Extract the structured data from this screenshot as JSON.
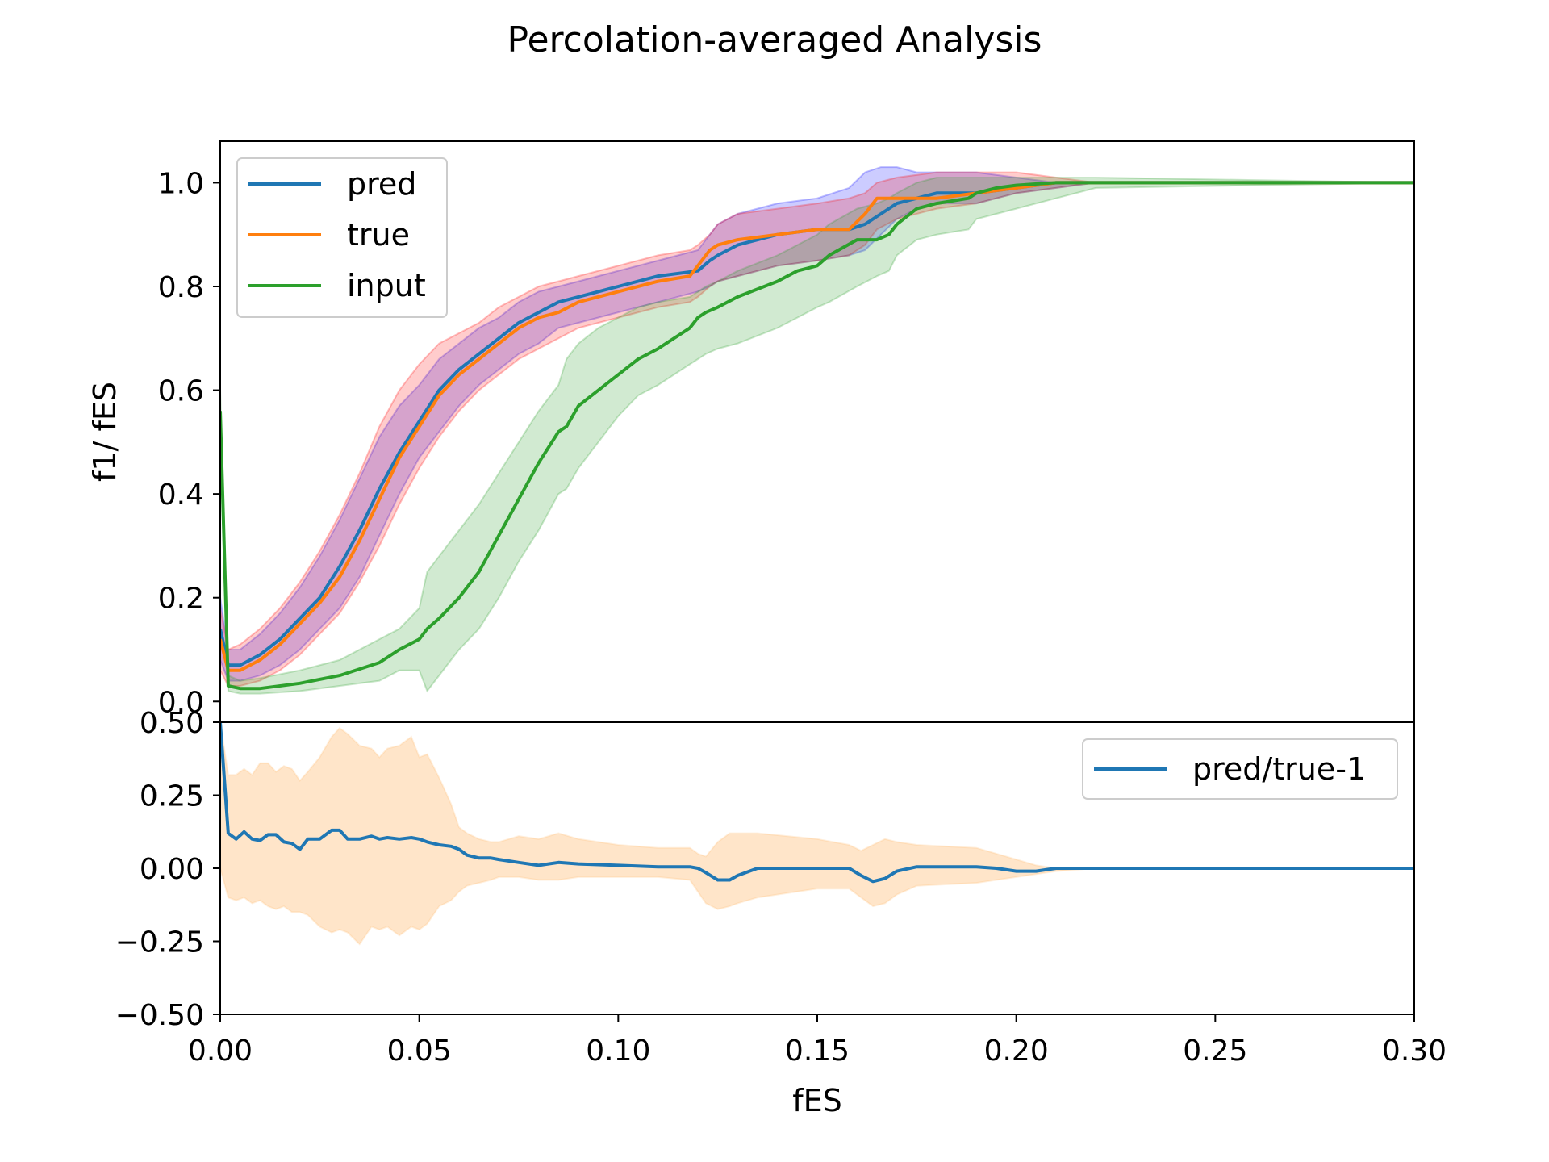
{
  "figure_title": "Percolation-averaged Analysis",
  "chart_data": [
    {
      "type": "line",
      "panel": "top",
      "xlabel": "",
      "ylabel": "f1/ fES",
      "xlim": [
        0,
        0.3
      ],
      "ylim": [
        -0.04,
        1.08
      ],
      "yticks": [
        0.0,
        0.2,
        0.4,
        0.6,
        0.8,
        1.0
      ],
      "ytick_labels": [
        "0.0",
        "0.2",
        "0.4",
        "0.6",
        "0.8",
        "1.0"
      ],
      "legend": {
        "placement": "upper-left",
        "entries": [
          "pred",
          "true",
          "input"
        ]
      },
      "series": [
        {
          "name": "pred",
          "color": "#1f77b4",
          "band_color": "#0000ff",
          "band_alpha": 0.2,
          "x": [
            0.0,
            0.002,
            0.005,
            0.01,
            0.015,
            0.02,
            0.025,
            0.03,
            0.035,
            0.04,
            0.045,
            0.05,
            0.055,
            0.06,
            0.065,
            0.07,
            0.075,
            0.08,
            0.085,
            0.09,
            0.1,
            0.11,
            0.12,
            0.123,
            0.125,
            0.13,
            0.14,
            0.15,
            0.158,
            0.162,
            0.166,
            0.17,
            0.175,
            0.18,
            0.19,
            0.2,
            0.21,
            0.22,
            0.3
          ],
          "y": [
            0.14,
            0.07,
            0.07,
            0.09,
            0.12,
            0.16,
            0.2,
            0.26,
            0.33,
            0.41,
            0.48,
            0.54,
            0.6,
            0.64,
            0.67,
            0.7,
            0.73,
            0.75,
            0.77,
            0.78,
            0.8,
            0.82,
            0.83,
            0.85,
            0.86,
            0.88,
            0.9,
            0.91,
            0.91,
            0.92,
            0.94,
            0.96,
            0.97,
            0.98,
            0.98,
            0.99,
            1.0,
            1.0,
            1.0
          ],
          "lower": [
            0.08,
            0.04,
            0.04,
            0.05,
            0.07,
            0.1,
            0.14,
            0.18,
            0.24,
            0.32,
            0.4,
            0.47,
            0.52,
            0.57,
            0.61,
            0.64,
            0.67,
            0.69,
            0.72,
            0.73,
            0.75,
            0.77,
            0.79,
            0.8,
            0.81,
            0.82,
            0.84,
            0.85,
            0.86,
            0.87,
            0.9,
            0.93,
            0.95,
            0.96,
            0.96,
            0.98,
            0.99,
            1.0,
            1.0
          ],
          "upper": [
            0.2,
            0.1,
            0.1,
            0.13,
            0.17,
            0.22,
            0.28,
            0.35,
            0.43,
            0.51,
            0.57,
            0.61,
            0.66,
            0.69,
            0.72,
            0.74,
            0.77,
            0.79,
            0.8,
            0.81,
            0.83,
            0.85,
            0.87,
            0.9,
            0.92,
            0.94,
            0.96,
            0.97,
            0.99,
            1.02,
            1.03,
            1.03,
            1.02,
            1.02,
            1.02,
            1.01,
            1.0,
            1.0,
            1.0
          ]
        },
        {
          "name": "true",
          "color": "#ff7f0e",
          "band_color": "#ff0000",
          "band_alpha": 0.2,
          "x": [
            0.0,
            0.002,
            0.005,
            0.01,
            0.015,
            0.02,
            0.025,
            0.03,
            0.035,
            0.04,
            0.045,
            0.05,
            0.055,
            0.06,
            0.065,
            0.07,
            0.075,
            0.08,
            0.085,
            0.09,
            0.1,
            0.11,
            0.118,
            0.12,
            0.123,
            0.125,
            0.13,
            0.14,
            0.15,
            0.158,
            0.162,
            0.165,
            0.17,
            0.18,
            0.19,
            0.2,
            0.21,
            0.22,
            0.3
          ],
          "y": [
            0.12,
            0.06,
            0.06,
            0.08,
            0.11,
            0.15,
            0.19,
            0.24,
            0.31,
            0.39,
            0.47,
            0.53,
            0.59,
            0.63,
            0.66,
            0.69,
            0.72,
            0.74,
            0.75,
            0.77,
            0.79,
            0.81,
            0.82,
            0.84,
            0.87,
            0.88,
            0.89,
            0.9,
            0.91,
            0.91,
            0.94,
            0.97,
            0.97,
            0.97,
            0.98,
            0.99,
            1.0,
            1.0,
            1.0
          ],
          "lower": [
            0.06,
            0.03,
            0.03,
            0.04,
            0.06,
            0.09,
            0.13,
            0.17,
            0.23,
            0.3,
            0.38,
            0.45,
            0.51,
            0.56,
            0.6,
            0.63,
            0.66,
            0.68,
            0.7,
            0.72,
            0.74,
            0.76,
            0.77,
            0.78,
            0.8,
            0.81,
            0.82,
            0.84,
            0.85,
            0.86,
            0.88,
            0.91,
            0.93,
            0.95,
            0.96,
            0.98,
            0.99,
            1.0,
            1.0
          ],
          "upper": [
            0.18,
            0.1,
            0.11,
            0.14,
            0.18,
            0.23,
            0.29,
            0.36,
            0.44,
            0.53,
            0.6,
            0.65,
            0.69,
            0.71,
            0.73,
            0.76,
            0.78,
            0.8,
            0.81,
            0.82,
            0.84,
            0.86,
            0.87,
            0.88,
            0.9,
            0.92,
            0.94,
            0.95,
            0.96,
            0.97,
            0.98,
            1.0,
            1.01,
            1.02,
            1.02,
            1.02,
            1.01,
            1.0,
            1.0
          ]
        },
        {
          "name": "input",
          "color": "#2ca02c",
          "band_color": "#2ca02c",
          "band_alpha": 0.22,
          "x": [
            0.0,
            0.002,
            0.005,
            0.01,
            0.02,
            0.03,
            0.04,
            0.045,
            0.05,
            0.052,
            0.055,
            0.06,
            0.065,
            0.07,
            0.075,
            0.08,
            0.085,
            0.087,
            0.09,
            0.095,
            0.1,
            0.105,
            0.11,
            0.118,
            0.12,
            0.122,
            0.125,
            0.13,
            0.14,
            0.145,
            0.15,
            0.153,
            0.16,
            0.165,
            0.168,
            0.17,
            0.175,
            0.18,
            0.188,
            0.19,
            0.195,
            0.2,
            0.21,
            0.22,
            0.3
          ],
          "y": [
            0.56,
            0.03,
            0.025,
            0.025,
            0.035,
            0.05,
            0.075,
            0.1,
            0.12,
            0.14,
            0.16,
            0.2,
            0.25,
            0.32,
            0.39,
            0.46,
            0.52,
            0.53,
            0.57,
            0.6,
            0.63,
            0.66,
            0.68,
            0.72,
            0.74,
            0.75,
            0.76,
            0.78,
            0.81,
            0.83,
            0.84,
            0.86,
            0.89,
            0.89,
            0.9,
            0.92,
            0.95,
            0.96,
            0.97,
            0.98,
            0.99,
            0.995,
            1.0,
            1.0,
            1.0
          ],
          "lower": [
            0.5,
            0.02,
            0.015,
            0.015,
            0.02,
            0.03,
            0.04,
            0.06,
            0.06,
            0.02,
            0.05,
            0.1,
            0.14,
            0.2,
            0.27,
            0.33,
            0.4,
            0.41,
            0.45,
            0.5,
            0.55,
            0.59,
            0.61,
            0.65,
            0.66,
            0.67,
            0.68,
            0.69,
            0.72,
            0.74,
            0.76,
            0.77,
            0.8,
            0.82,
            0.83,
            0.86,
            0.89,
            0.9,
            0.91,
            0.93,
            0.94,
            0.95,
            0.97,
            0.99,
            1.0
          ],
          "upper": [
            0.6,
            0.05,
            0.04,
            0.045,
            0.06,
            0.08,
            0.12,
            0.14,
            0.18,
            0.25,
            0.28,
            0.33,
            0.38,
            0.44,
            0.5,
            0.56,
            0.61,
            0.66,
            0.69,
            0.72,
            0.74,
            0.76,
            0.77,
            0.78,
            0.79,
            0.8,
            0.81,
            0.83,
            0.86,
            0.88,
            0.9,
            0.92,
            0.95,
            0.96,
            0.97,
            0.98,
            1.0,
            1.01,
            1.01,
            1.01,
            1.01,
            1.01,
            1.01,
            1.01,
            1.0
          ]
        }
      ]
    },
    {
      "type": "line",
      "panel": "bottom",
      "xlabel": "fES",
      "ylabel": "",
      "xlim": [
        0,
        0.3
      ],
      "ylim": [
        -0.5,
        0.5
      ],
      "xticks": [
        0.0,
        0.05,
        0.1,
        0.15,
        0.2,
        0.25,
        0.3
      ],
      "xtick_labels": [
        "0.00",
        "0.05",
        "0.10",
        "0.15",
        "0.20",
        "0.25",
        "0.30"
      ],
      "yticks": [
        0.5,
        0.25,
        0.0,
        -0.25,
        -0.5
      ],
      "ytick_labels": [
        "0.50",
        "0.25",
        "0.00",
        "−0.25",
        "−0.50"
      ],
      "legend": {
        "placement": "upper-right",
        "entries": [
          "pred/true-1"
        ]
      },
      "series": [
        {
          "name": "pred/true-1",
          "color": "#1f77b4",
          "band_color": "#ffbe78",
          "band_alpha": 0.4,
          "x": [
            0.0,
            0.002,
            0.004,
            0.006,
            0.008,
            0.01,
            0.012,
            0.014,
            0.016,
            0.018,
            0.02,
            0.022,
            0.025,
            0.028,
            0.03,
            0.032,
            0.035,
            0.038,
            0.04,
            0.042,
            0.045,
            0.048,
            0.05,
            0.052,
            0.055,
            0.058,
            0.06,
            0.062,
            0.065,
            0.068,
            0.07,
            0.075,
            0.08,
            0.085,
            0.09,
            0.1,
            0.11,
            0.118,
            0.12,
            0.122,
            0.125,
            0.128,
            0.13,
            0.135,
            0.15,
            0.158,
            0.161,
            0.164,
            0.167,
            0.17,
            0.175,
            0.19,
            0.195,
            0.2,
            0.205,
            0.21,
            0.22,
            0.3
          ],
          "y": [
            0.5,
            0.12,
            0.1,
            0.125,
            0.1,
            0.095,
            0.115,
            0.115,
            0.09,
            0.085,
            0.065,
            0.1,
            0.1,
            0.13,
            0.13,
            0.1,
            0.1,
            0.11,
            0.1,
            0.105,
            0.1,
            0.105,
            0.1,
            0.09,
            0.08,
            0.075,
            0.065,
            0.045,
            0.035,
            0.035,
            0.03,
            0.02,
            0.01,
            0.02,
            0.015,
            0.01,
            0.005,
            0.005,
            0.0,
            -0.015,
            -0.04,
            -0.04,
            -0.025,
            0.0,
            0.0,
            0.0,
            -0.025,
            -0.045,
            -0.035,
            -0.01,
            0.005,
            0.005,
            0.0,
            -0.01,
            -0.01,
            0.0,
            0.0,
            0.0
          ],
          "lower": [
            0.0,
            -0.1,
            -0.11,
            -0.1,
            -0.12,
            -0.11,
            -0.13,
            -0.14,
            -0.13,
            -0.15,
            -0.15,
            -0.16,
            -0.2,
            -0.22,
            -0.21,
            -0.22,
            -0.26,
            -0.2,
            -0.21,
            -0.2,
            -0.23,
            -0.2,
            -0.21,
            -0.19,
            -0.13,
            -0.11,
            -0.08,
            -0.06,
            -0.05,
            -0.04,
            -0.03,
            -0.03,
            -0.04,
            -0.04,
            -0.03,
            -0.03,
            -0.03,
            -0.04,
            -0.08,
            -0.12,
            -0.14,
            -0.13,
            -0.12,
            -0.1,
            -0.07,
            -0.07,
            -0.1,
            -0.13,
            -0.12,
            -0.09,
            -0.06,
            -0.05,
            -0.04,
            -0.03,
            -0.02,
            -0.01,
            0.0,
            0.0
          ],
          "upper": [
            0.5,
            0.32,
            0.32,
            0.34,
            0.32,
            0.36,
            0.36,
            0.33,
            0.35,
            0.34,
            0.3,
            0.33,
            0.38,
            0.45,
            0.48,
            0.46,
            0.42,
            0.41,
            0.38,
            0.41,
            0.42,
            0.45,
            0.38,
            0.39,
            0.31,
            0.22,
            0.14,
            0.12,
            0.1,
            0.09,
            0.09,
            0.11,
            0.1,
            0.12,
            0.1,
            0.08,
            0.07,
            0.07,
            0.05,
            0.04,
            0.09,
            0.12,
            0.12,
            0.12,
            0.1,
            0.08,
            0.06,
            0.08,
            0.1,
            0.09,
            0.08,
            0.07,
            0.05,
            0.03,
            0.01,
            0.0,
            0.0,
            0.0
          ]
        }
      ]
    }
  ]
}
